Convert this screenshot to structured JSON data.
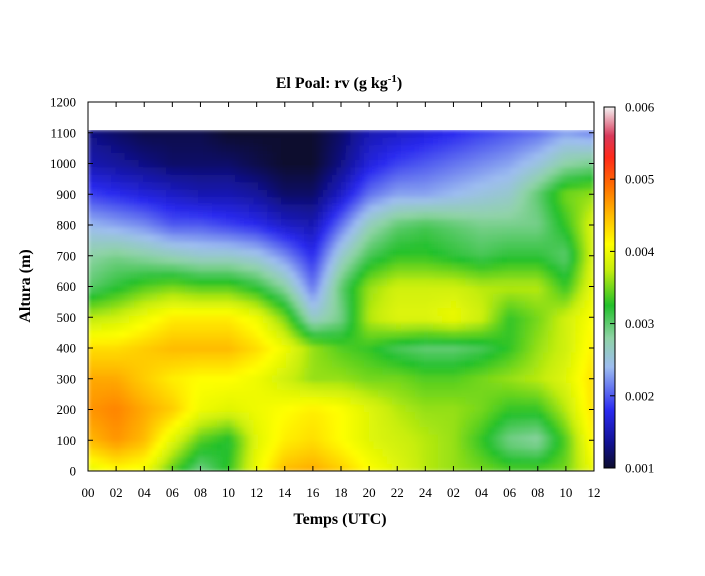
{
  "chart_data": {
    "type": "heatmap",
    "title": "El Poal: rv (g kg",
    "title_sup": "-1",
    "title_end": ")",
    "xlabel": "Temps (UTC)",
    "ylabel": "Altura (m)",
    "x_ticks": [
      "00",
      "02",
      "04",
      "06",
      "08",
      "10",
      "12",
      "14",
      "16",
      "18",
      "20",
      "22",
      "24",
      "02",
      "04",
      "06",
      "08",
      "10",
      "12"
    ],
    "x_range_hours": [
      0,
      36
    ],
    "y_ticks": [
      "0",
      "100",
      "200",
      "300",
      "400",
      "500",
      "600",
      "700",
      "800",
      "900",
      "1000",
      "1100",
      "1200"
    ],
    "y_range": [
      0,
      1200
    ],
    "data_top_altitude": 1110,
    "colorbar": {
      "ticks": [
        "0.001",
        "0.002",
        "0.003",
        "0.004",
        "0.005",
        "0.006"
      ],
      "range": [
        0.001,
        0.006
      ],
      "colors": [
        [
          0.0,
          "#0d0d2e"
        ],
        [
          0.07,
          "#121293"
        ],
        [
          0.16,
          "#2a2af0"
        ],
        [
          0.28,
          "#9dbdf0"
        ],
        [
          0.36,
          "#8fd3a6"
        ],
        [
          0.45,
          "#22c02a"
        ],
        [
          0.55,
          "#c8ee0c"
        ],
        [
          0.62,
          "#ffff00"
        ],
        [
          0.7,
          "#ffbb00"
        ],
        [
          0.78,
          "#ff7000"
        ],
        [
          0.86,
          "#ff2a1a"
        ],
        [
          0.92,
          "#d8385a"
        ],
        [
          1.0,
          "#f4f4f4"
        ]
      ]
    },
    "values_g_per_kg": {
      "hours": [
        0,
        2,
        4,
        6,
        8,
        10,
        12,
        14,
        16,
        18,
        20,
        22,
        24,
        26,
        28,
        30,
        32,
        34,
        36
      ],
      "altitudes_m": [
        0,
        100,
        200,
        300,
        400,
        500,
        600,
        700,
        800,
        900,
        1000,
        1100
      ],
      "rows": [
        [
          0.0039,
          0.0041,
          0.004,
          0.0034,
          0.0029,
          0.0033,
          0.004,
          0.0045,
          0.0046,
          0.0044,
          0.0041,
          0.0039,
          0.0037,
          0.0036,
          0.0035,
          0.0034,
          0.0034,
          0.0035,
          0.004
        ],
        [
          0.0045,
          0.0047,
          0.0045,
          0.0039,
          0.0034,
          0.0032,
          0.0039,
          0.0042,
          0.0043,
          0.0041,
          0.0039,
          0.0038,
          0.0037,
          0.0036,
          0.0033,
          0.0029,
          0.0028,
          0.0034,
          0.0042
        ],
        [
          0.0047,
          0.0048,
          0.0046,
          0.0044,
          0.004,
          0.0039,
          0.004,
          0.0041,
          0.0042,
          0.0041,
          0.0039,
          0.0037,
          0.0036,
          0.0036,
          0.0035,
          0.0033,
          0.0033,
          0.0037,
          0.0043
        ],
        [
          0.0046,
          0.0046,
          0.0044,
          0.0042,
          0.0041,
          0.0041,
          0.004,
          0.0038,
          0.0036,
          0.0036,
          0.0035,
          0.0035,
          0.0034,
          0.0034,
          0.0035,
          0.0036,
          0.0037,
          0.0039,
          0.0043
        ],
        [
          0.0043,
          0.0043,
          0.0044,
          0.0045,
          0.0045,
          0.0045,
          0.0043,
          0.004,
          0.0036,
          0.0034,
          0.0033,
          0.0031,
          0.003,
          0.003,
          0.0031,
          0.0033,
          0.0036,
          0.0038,
          0.0042
        ],
        [
          0.0037,
          0.0038,
          0.004,
          0.0042,
          0.0042,
          0.0042,
          0.004,
          0.0035,
          0.0026,
          0.0029,
          0.0037,
          0.0039,
          0.0039,
          0.004,
          0.0038,
          0.0033,
          0.0035,
          0.0038,
          0.0041
        ],
        [
          0.003,
          0.0032,
          0.0034,
          0.0035,
          0.0034,
          0.0034,
          0.0032,
          0.0028,
          0.0021,
          0.003,
          0.0036,
          0.0038,
          0.0038,
          0.0038,
          0.0037,
          0.0037,
          0.0037,
          0.0033,
          0.004
        ],
        [
          0.0028,
          0.0029,
          0.0028,
          0.0027,
          0.0026,
          0.0026,
          0.0025,
          0.0022,
          0.0018,
          0.0026,
          0.0031,
          0.0033,
          0.0033,
          0.0032,
          0.0031,
          0.0032,
          0.0032,
          0.003,
          0.0039
        ],
        [
          0.0024,
          0.0023,
          0.0022,
          0.002,
          0.002,
          0.0019,
          0.0018,
          0.0016,
          0.0015,
          0.0021,
          0.0027,
          0.003,
          0.0031,
          0.003,
          0.0029,
          0.0029,
          0.0029,
          0.0033,
          0.0039
        ],
        [
          0.0019,
          0.0018,
          0.0017,
          0.0016,
          0.0015,
          0.0015,
          0.0014,
          0.0012,
          0.0012,
          0.0016,
          0.0021,
          0.0023,
          0.0023,
          0.0024,
          0.0025,
          0.0026,
          0.003,
          0.0035,
          0.0036
        ],
        [
          0.0015,
          0.0014,
          0.0013,
          0.0012,
          0.0012,
          0.0012,
          0.0011,
          0.001,
          0.001,
          0.0013,
          0.0017,
          0.0019,
          0.002,
          0.0021,
          0.0022,
          0.0023,
          0.0025,
          0.0028,
          0.0029
        ],
        [
          0.0013,
          0.0012,
          0.0011,
          0.0011,
          0.0011,
          0.001,
          0.001,
          0.001,
          0.001,
          0.0012,
          0.0015,
          0.0016,
          0.0017,
          0.0018,
          0.0019,
          0.002,
          0.0021,
          0.0023,
          0.0022
        ]
      ]
    },
    "grid": false
  }
}
